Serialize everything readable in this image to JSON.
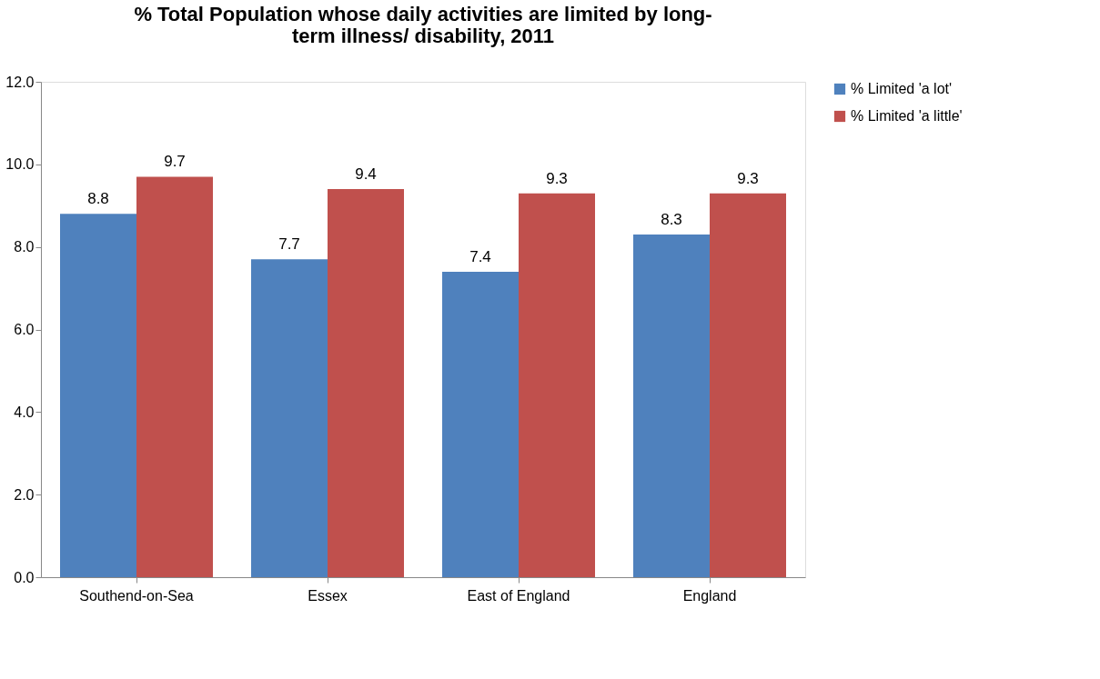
{
  "chart_data": {
    "type": "bar",
    "title": "% Total Population whose daily activities are limited by long-term illness/ disability, 2011",
    "categories": [
      "Southend-on-Sea",
      "Essex",
      "East of England",
      "England"
    ],
    "series": [
      {
        "name": "% Limited 'a lot'",
        "color": "#4f81bd",
        "values": [
          8.8,
          7.7,
          7.4,
          8.3
        ]
      },
      {
        "name": "% Limited 'a little'",
        "color": "#c0504d",
        "values": [
          9.7,
          9.4,
          9.3,
          9.3
        ]
      }
    ],
    "ylim": [
      0,
      12
    ],
    "yticks": [
      {
        "value": 0,
        "label": "0.0"
      },
      {
        "value": 2,
        "label": "2.0"
      },
      {
        "value": 4,
        "label": "4.0"
      },
      {
        "value": 6,
        "label": "6.0"
      },
      {
        "value": 8,
        "label": "8.0"
      },
      {
        "value": 10,
        "label": "10.0"
      },
      {
        "value": 12,
        "label": "12.0"
      }
    ],
    "data_labels": true,
    "grid": false,
    "legend": "right"
  }
}
